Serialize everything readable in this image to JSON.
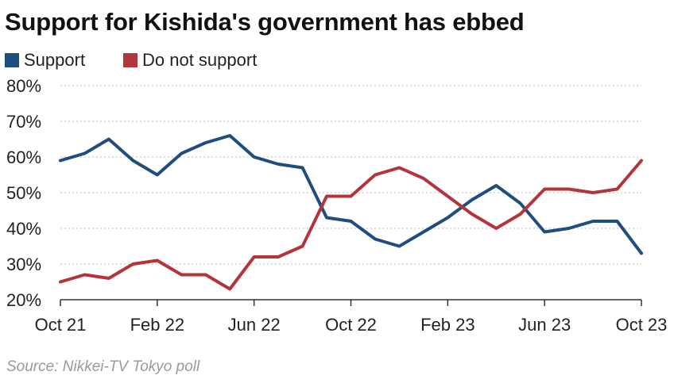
{
  "chart_data": {
    "type": "line",
    "title": "Support for Kishida's government has ebbed",
    "xlabel": "",
    "ylabel": "",
    "x": [
      "Oct 21",
      "Nov 21",
      "Dec 21",
      "Jan 22",
      "Feb 22",
      "Mar 22",
      "Apr 22",
      "May 22",
      "Jun 22",
      "Jul 22",
      "Aug 22",
      "Sep 22",
      "Oct 22",
      "Nov 22",
      "Dec 22",
      "Jan 23",
      "Feb 23",
      "Mar 23",
      "Apr 23",
      "May 23",
      "Jun 23",
      "Jul 23",
      "Aug 23",
      "Sep 23",
      "Oct 23"
    ],
    "x_ticks": [
      "Oct 21",
      "Feb 22",
      "Jun 22",
      "Oct 22",
      "Feb 23",
      "Jun 23",
      "Oct 23"
    ],
    "y_ticks": [
      "20%",
      "30%",
      "40%",
      "50%",
      "60%",
      "70%",
      "80%"
    ],
    "ylim": [
      20,
      80
    ],
    "grid": "horizontal dotted",
    "legend_position": "top-left",
    "series": [
      {
        "name": "Support",
        "color": "#1f4e7e",
        "values": [
          59,
          61,
          65,
          59,
          55,
          61,
          64,
          66,
          60,
          58,
          57,
          43,
          42,
          37,
          35,
          39,
          43,
          48,
          52,
          47,
          39,
          40,
          42,
          42,
          33
        ]
      },
      {
        "name": "Do not support",
        "color": "#b3343a",
        "values": [
          25,
          27,
          26,
          30,
          31,
          27,
          27,
          23,
          32,
          32,
          35,
          49,
          49,
          55,
          57,
          54,
          49,
          44,
          40,
          44,
          51,
          51,
          50,
          51,
          59
        ]
      }
    ]
  },
  "source": "Source: Nikkei-TV Tokyo poll"
}
